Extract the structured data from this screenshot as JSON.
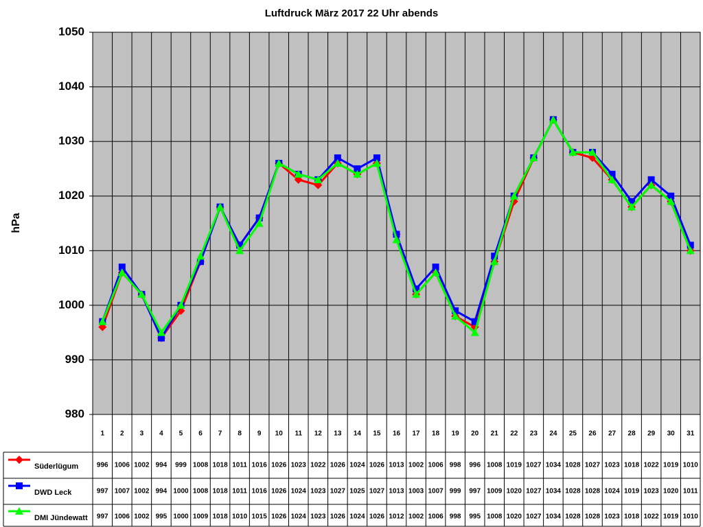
{
  "chart_data": {
    "type": "line",
    "title": "Luftdruck März 2017 22 Uhr abends",
    "y_label": "hPa",
    "categories": [
      "1",
      "2",
      "3",
      "4",
      "5",
      "6",
      "7",
      "8",
      "9",
      "10",
      "11",
      "12",
      "13",
      "14",
      "15",
      "16",
      "17",
      "18",
      "19",
      "20",
      "21",
      "22",
      "23",
      "24",
      "25",
      "26",
      "27",
      "28",
      "29",
      "30",
      "31"
    ],
    "ylim": [
      980,
      1050
    ],
    "yticks": [
      980,
      990,
      1000,
      1010,
      1020,
      1030,
      1040,
      1050
    ],
    "grid": true,
    "series": [
      {
        "name": "Süderlügum",
        "color": "#ff0000",
        "marker": "diamond",
        "values": [
          996,
          1006,
          1002,
          994,
          999,
          1008,
          1018,
          1011,
          1016,
          1026,
          1023,
          1022,
          1026,
          1024,
          1026,
          1013,
          1002,
          1006,
          998,
          996,
          1008,
          1019,
          1027,
          1034,
          1028,
          1027,
          1023,
          1018,
          1022,
          1019,
          1010
        ]
      },
      {
        "name": "DWD Leck",
        "color": "#0000ff",
        "marker": "square",
        "values": [
          997,
          1007,
          1002,
          994,
          1000,
          1008,
          1018,
          1011,
          1016,
          1026,
          1024,
          1023,
          1027,
          1025,
          1027,
          1013,
          1003,
          1007,
          999,
          997,
          1009,
          1020,
          1027,
          1034,
          1028,
          1028,
          1024,
          1019,
          1023,
          1020,
          1011
        ]
      },
      {
        "name": "DMI Jündewatt",
        "color": "#00ff00",
        "marker": "triangle",
        "values": [
          997,
          1006,
          1002,
          995,
          1000,
          1009,
          1018,
          1010,
          1015,
          1026,
          1024,
          1023,
          1026,
          1024,
          1026,
          1012,
          1002,
          1006,
          998,
          995,
          1008,
          1020,
          1027,
          1034,
          1028,
          1028,
          1023,
          1018,
          1022,
          1019,
          1010
        ]
      }
    ]
  }
}
